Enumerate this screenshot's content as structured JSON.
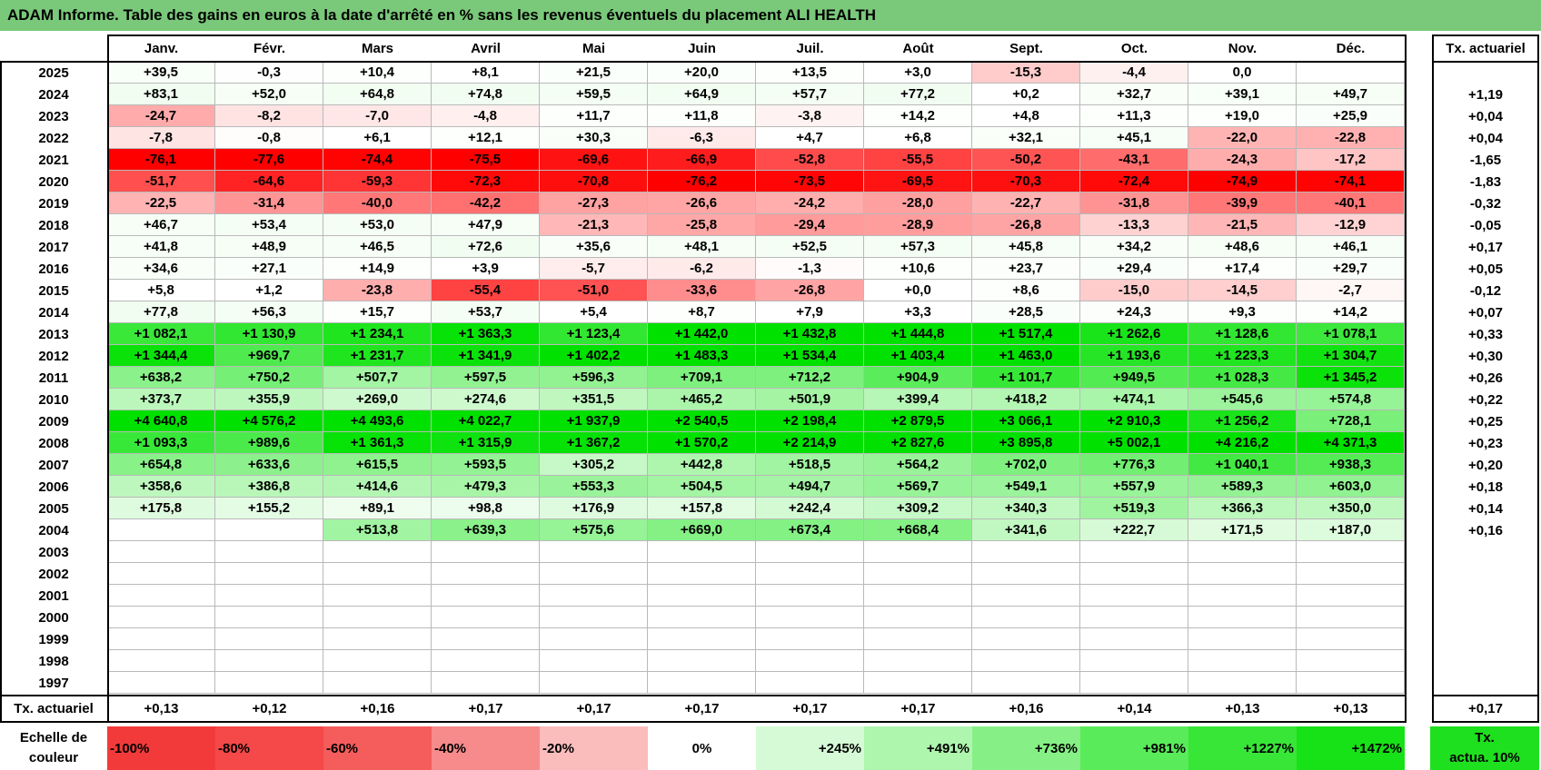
{
  "title": "ADAM Informe. Table des gains en euros à la date d'arrêté en % sans les revenus éventuels du placement ALI HEALTH",
  "chart_data": {
    "type": "heatmap",
    "title": "ADAM Informe. Table des gains en euros à la date d'arrêté en % sans les revenus éventuels du placement ALI HEALTH",
    "months": [
      "Janv.",
      "Févr.",
      "Mars",
      "Avril",
      "Mai",
      "Juin",
      "Juil.",
      "Août",
      "Sept.",
      "Oct.",
      "Nov.",
      "Déc."
    ],
    "annual_header": "Tx. actuariel",
    "rows": [
      {
        "year": "2025",
        "values": [
          "+39,5",
          "-0,3",
          "+10,4",
          "+8,1",
          "+21,5",
          "+20,0",
          "+13,5",
          "+3,0",
          "-15,3",
          "-4,4",
          "0,0",
          ""
        ],
        "rate": ""
      },
      {
        "year": "2024",
        "values": [
          "+83,1",
          "+52,0",
          "+64,8",
          "+74,8",
          "+59,5",
          "+64,9",
          "+57,7",
          "+77,2",
          "+0,2",
          "+32,7",
          "+39,1",
          "+49,7"
        ],
        "rate": "+1,19"
      },
      {
        "year": "2023",
        "values": [
          "-24,7",
          "-8,2",
          "-7,0",
          "-4,8",
          "+11,7",
          "+11,8",
          "-3,8",
          "+14,2",
          "+4,8",
          "+11,3",
          "+19,0",
          "+25,9"
        ],
        "rate": "+0,04"
      },
      {
        "year": "2022",
        "values": [
          "-7,8",
          "-0,8",
          "+6,1",
          "+12,1",
          "+30,3",
          "-6,3",
          "+4,7",
          "+6,8",
          "+32,1",
          "+45,1",
          "-22,0",
          "-22,8"
        ],
        "rate": "+0,04"
      },
      {
        "year": "2021",
        "values": [
          "-76,1",
          "-77,6",
          "-74,4",
          "-75,5",
          "-69,6",
          "-66,9",
          "-52,8",
          "-55,5",
          "-50,2",
          "-43,1",
          "-24,3",
          "-17,2"
        ],
        "rate": "-1,65"
      },
      {
        "year": "2020",
        "values": [
          "-51,7",
          "-64,6",
          "-59,3",
          "-72,3",
          "-70,8",
          "-76,2",
          "-73,5",
          "-69,5",
          "-70,3",
          "-72,4",
          "-74,9",
          "-74,1"
        ],
        "rate": "-1,83"
      },
      {
        "year": "2019",
        "values": [
          "-22,5",
          "-31,4",
          "-40,0",
          "-42,2",
          "-27,3",
          "-26,6",
          "-24,2",
          "-28,0",
          "-22,7",
          "-31,8",
          "-39,9",
          "-40,1"
        ],
        "rate": "-0,32"
      },
      {
        "year": "2018",
        "values": [
          "+46,7",
          "+53,4",
          "+53,0",
          "+47,9",
          "-21,3",
          "-25,8",
          "-29,4",
          "-28,9",
          "-26,8",
          "-13,3",
          "-21,5",
          "-12,9"
        ],
        "rate": "-0,05"
      },
      {
        "year": "2017",
        "values": [
          "+41,8",
          "+48,9",
          "+46,5",
          "+72,6",
          "+35,6",
          "+48,1",
          "+52,5",
          "+57,3",
          "+45,8",
          "+34,2",
          "+48,6",
          "+46,1"
        ],
        "rate": "+0,17"
      },
      {
        "year": "2016",
        "values": [
          "+34,6",
          "+27,1",
          "+14,9",
          "+3,9",
          "-5,7",
          "-6,2",
          "-1,3",
          "+10,6",
          "+23,7",
          "+29,4",
          "+17,4",
          "+29,7"
        ],
        "rate": "+0,05"
      },
      {
        "year": "2015",
        "values": [
          "+5,8",
          "+1,2",
          "-23,8",
          "-55,4",
          "-51,0",
          "-33,6",
          "-26,8",
          "+0,0",
          "+8,6",
          "-15,0",
          "-14,5",
          "-2,7"
        ],
        "rate": "-0,12"
      },
      {
        "year": "2014",
        "values": [
          "+77,8",
          "+56,3",
          "+15,7",
          "+53,7",
          "+5,4",
          "+8,7",
          "+7,9",
          "+3,3",
          "+28,5",
          "+24,3",
          "+9,3",
          "+14,2"
        ],
        "rate": "+0,07"
      },
      {
        "year": "2013",
        "values": [
          "+1 082,1",
          "+1 130,9",
          "+1 234,1",
          "+1 363,3",
          "+1 123,4",
          "+1 442,0",
          "+1 432,8",
          "+1 444,8",
          "+1 517,4",
          "+1 262,6",
          "+1 128,6",
          "+1 078,1"
        ],
        "rate": "+0,33"
      },
      {
        "year": "2012",
        "values": [
          "+1 344,4",
          "+969,7",
          "+1 231,7",
          "+1 341,9",
          "+1 402,2",
          "+1 483,3",
          "+1 534,4",
          "+1 403,4",
          "+1 463,0",
          "+1 193,6",
          "+1 223,3",
          "+1 304,7"
        ],
        "rate": "+0,30"
      },
      {
        "year": "2011",
        "values": [
          "+638,2",
          "+750,2",
          "+507,7",
          "+597,5",
          "+596,3",
          "+709,1",
          "+712,2",
          "+904,9",
          "+1 101,7",
          "+949,5",
          "+1 028,3",
          "+1 345,2"
        ],
        "rate": "+0,26"
      },
      {
        "year": "2010",
        "values": [
          "+373,7",
          "+355,9",
          "+269,0",
          "+274,6",
          "+351,5",
          "+465,2",
          "+501,9",
          "+399,4",
          "+418,2",
          "+474,1",
          "+545,6",
          "+574,8"
        ],
        "rate": "+0,22"
      },
      {
        "year": "2009",
        "values": [
          "+4 640,8",
          "+4 576,2",
          "+4 493,6",
          "+4 022,7",
          "+1 937,9",
          "+2 540,5",
          "+2 198,4",
          "+2 879,5",
          "+3 066,1",
          "+2 910,3",
          "+1 256,2",
          "+728,1"
        ],
        "rate": "+0,25"
      },
      {
        "year": "2008",
        "values": [
          "+1 093,3",
          "+989,6",
          "+1 361,3",
          "+1 315,9",
          "+1 367,2",
          "+1 570,2",
          "+2 214,9",
          "+2 827,6",
          "+3 895,8",
          "+5 002,1",
          "+4 216,2",
          "+4 371,3"
        ],
        "rate": "+0,23"
      },
      {
        "year": "2007",
        "values": [
          "+654,8",
          "+633,6",
          "+615,5",
          "+593,5",
          "+305,2",
          "+442,8",
          "+518,5",
          "+564,2",
          "+702,0",
          "+776,3",
          "+1 040,1",
          "+938,3"
        ],
        "rate": "+0,20"
      },
      {
        "year": "2006",
        "values": [
          "+358,6",
          "+386,8",
          "+414,6",
          "+479,3",
          "+553,3",
          "+504,5",
          "+494,7",
          "+569,7",
          "+549,1",
          "+557,9",
          "+589,3",
          "+603,0"
        ],
        "rate": "+0,18"
      },
      {
        "year": "2005",
        "values": [
          "+175,8",
          "+155,2",
          "+89,1",
          "+98,8",
          "+176,9",
          "+157,8",
          "+242,4",
          "+309,2",
          "+340,3",
          "+519,3",
          "+366,3",
          "+350,0"
        ],
        "rate": "+0,14"
      },
      {
        "year": "2004",
        "values": [
          "",
          "",
          "+513,8",
          "+639,3",
          "+575,6",
          "+669,0",
          "+673,4",
          "+668,4",
          "+341,6",
          "+222,7",
          "+171,5",
          "+187,0"
        ],
        "rate": "+0,16"
      },
      {
        "year": "2003",
        "values": [
          "",
          "",
          "",
          "",
          "",
          "",
          "",
          "",
          "",
          "",
          "",
          ""
        ],
        "rate": ""
      },
      {
        "year": "2002",
        "values": [
          "",
          "",
          "",
          "",
          "",
          "",
          "",
          "",
          "",
          "",
          "",
          ""
        ],
        "rate": ""
      },
      {
        "year": "2001",
        "values": [
          "",
          "",
          "",
          "",
          "",
          "",
          "",
          "",
          "",
          "",
          "",
          ""
        ],
        "rate": ""
      },
      {
        "year": "2000",
        "values": [
          "",
          "",
          "",
          "",
          "",
          "",
          "",
          "",
          "",
          "",
          "",
          ""
        ],
        "rate": ""
      },
      {
        "year": "1999",
        "values": [
          "",
          "",
          "",
          "",
          "",
          "",
          "",
          "",
          "",
          "",
          "",
          ""
        ],
        "rate": ""
      },
      {
        "year": "1998",
        "values": [
          "",
          "",
          "",
          "",
          "",
          "",
          "",
          "",
          "",
          "",
          "",
          ""
        ],
        "rate": ""
      },
      {
        "year": "1997",
        "values": [
          "",
          "",
          "",
          "",
          "",
          "",
          "",
          "",
          "",
          "",
          "",
          ""
        ],
        "rate": ""
      }
    ],
    "footer": {
      "label": "Tx. actuariel",
      "values": [
        "+0,13",
        "+0,12",
        "+0,16",
        "+0,17",
        "+0,17",
        "+0,17",
        "+0,17",
        "+0,17",
        "+0,16",
        "+0,14",
        "+0,13",
        "+0,13"
      ],
      "rate": "+0,17"
    },
    "scale": {
      "label_line1": "Echelle de",
      "label_line2": "couleur",
      "steps": [
        {
          "label": "-100%",
          "color": "#f23a3a"
        },
        {
          "label": "-80%",
          "color": "#f54848"
        },
        {
          "label": "-60%",
          "color": "#f55c5c"
        },
        {
          "label": "-40%",
          "color": "#f78a8a"
        },
        {
          "label": "-20%",
          "color": "#fbbcbc"
        },
        {
          "label": "0%",
          "color": "#ffffff"
        },
        {
          "label": "+245%",
          "color": "#d6fad6"
        },
        {
          "label": "+491%",
          "color": "#aef5ae"
        },
        {
          "label": "+736%",
          "color": "#86f086"
        },
        {
          "label": "+981%",
          "color": "#5aeb5a"
        },
        {
          "label": "+1227%",
          "color": "#38e638"
        },
        {
          "label": "+1472%",
          "color": "#17e117"
        }
      ],
      "tx_line1": "Tx.",
      "tx_line2": "actua. 10%",
      "tx_color": "#1fe01f"
    },
    "colors": {
      "title_bar": "#7ac97a",
      "negative_max": "#ff0000",
      "positive_max": "#00e000",
      "neutral": "#ffffff"
    }
  }
}
